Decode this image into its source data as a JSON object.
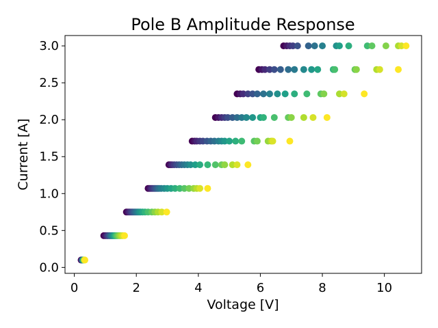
{
  "chart_data": {
    "type": "scatter",
    "title": "Pole B Amplitude Response",
    "xlabel": "Voltage [V]",
    "ylabel": "Current [A]",
    "xlim": [
      -0.3,
      11.2
    ],
    "ylim": [
      -0.08,
      3.14
    ],
    "xticks": [
      0,
      2,
      4,
      6,
      8,
      10
    ],
    "yticks": [
      0.0,
      0.5,
      1.0,
      1.5,
      2.0,
      2.5,
      3.0
    ],
    "xtick_labels": [
      "0",
      "2",
      "4",
      "6",
      "8",
      "10"
    ],
    "ytick_labels": [
      "0.0",
      "0.5",
      "1.0",
      "1.5",
      "2.0",
      "2.5",
      "3.0"
    ],
    "grid": false,
    "legend": "none",
    "colormap": "viridis",
    "rows": [
      {
        "current": 0.1,
        "voltages": [
          0.22,
          0.24,
          0.25,
          0.26,
          0.27,
          0.28,
          0.29,
          0.3,
          0.31,
          0.32,
          0.33,
          0.34
        ]
      },
      {
        "current": 0.43,
        "voltages": [
          0.95,
          1.0,
          1.05,
          1.08,
          1.12,
          1.15,
          1.18,
          1.21,
          1.24,
          1.27,
          1.3,
          1.33,
          1.36,
          1.4,
          1.45,
          1.5,
          1.56,
          1.62
        ]
      },
      {
        "current": 0.75,
        "voltages": [
          1.68,
          1.73,
          1.78,
          1.83,
          1.88,
          1.93,
          1.98,
          2.03,
          2.08,
          2.13,
          2.2,
          2.28,
          2.38,
          2.5,
          2.6,
          2.7,
          2.82,
          2.98
        ]
      },
      {
        "current": 1.07,
        "voltages": [
          2.38,
          2.43,
          2.48,
          2.53,
          2.58,
          2.63,
          2.68,
          2.73,
          2.8,
          2.9,
          3.0,
          3.12,
          3.25,
          3.4,
          3.55,
          3.7,
          3.85,
          3.95,
          4.05,
          4.3
        ]
      },
      {
        "current": 1.39,
        "voltages": [
          3.05,
          3.1,
          3.15,
          3.22,
          3.3,
          3.38,
          3.46,
          3.55,
          3.65,
          3.75,
          3.9,
          4.05,
          4.3,
          4.55,
          4.75,
          4.85,
          5.1,
          5.25,
          5.6
        ]
      },
      {
        "current": 1.71,
        "voltages": [
          3.8,
          3.88,
          3.95,
          4.05,
          4.15,
          4.28,
          4.4,
          4.52,
          4.65,
          4.75,
          4.85,
          5.0,
          5.2,
          5.4,
          5.8,
          5.9,
          6.25,
          6.35,
          6.4,
          6.95
        ]
      },
      {
        "current": 2.03,
        "voltages": [
          4.55,
          4.65,
          4.75,
          4.85,
          4.95,
          5.1,
          5.25,
          5.4,
          5.55,
          5.75,
          6.0,
          6.1,
          6.45,
          6.9,
          7.0,
          7.4,
          7.7,
          8.15
        ]
      },
      {
        "current": 2.35,
        "voltages": [
          5.25,
          5.35,
          5.45,
          5.6,
          5.75,
          5.9,
          6.1,
          6.3,
          6.55,
          6.8,
          7.1,
          7.5,
          7.95,
          8.05,
          8.55,
          8.7,
          9.35
        ]
      },
      {
        "current": 2.68,
        "voltages": [
          5.95,
          6.05,
          6.15,
          6.3,
          6.45,
          6.65,
          6.9,
          7.1,
          7.4,
          7.65,
          7.85,
          8.35,
          8.4,
          9.05,
          9.1,
          9.75,
          9.85,
          10.45
        ]
      },
      {
        "current": 3.0,
        "voltages": [
          6.75,
          6.85,
          6.95,
          7.05,
          7.2,
          7.55,
          7.75,
          8.0,
          8.45,
          8.55,
          8.85,
          9.45,
          9.6,
          10.05,
          10.45,
          10.55,
          10.7
        ]
      }
    ]
  }
}
